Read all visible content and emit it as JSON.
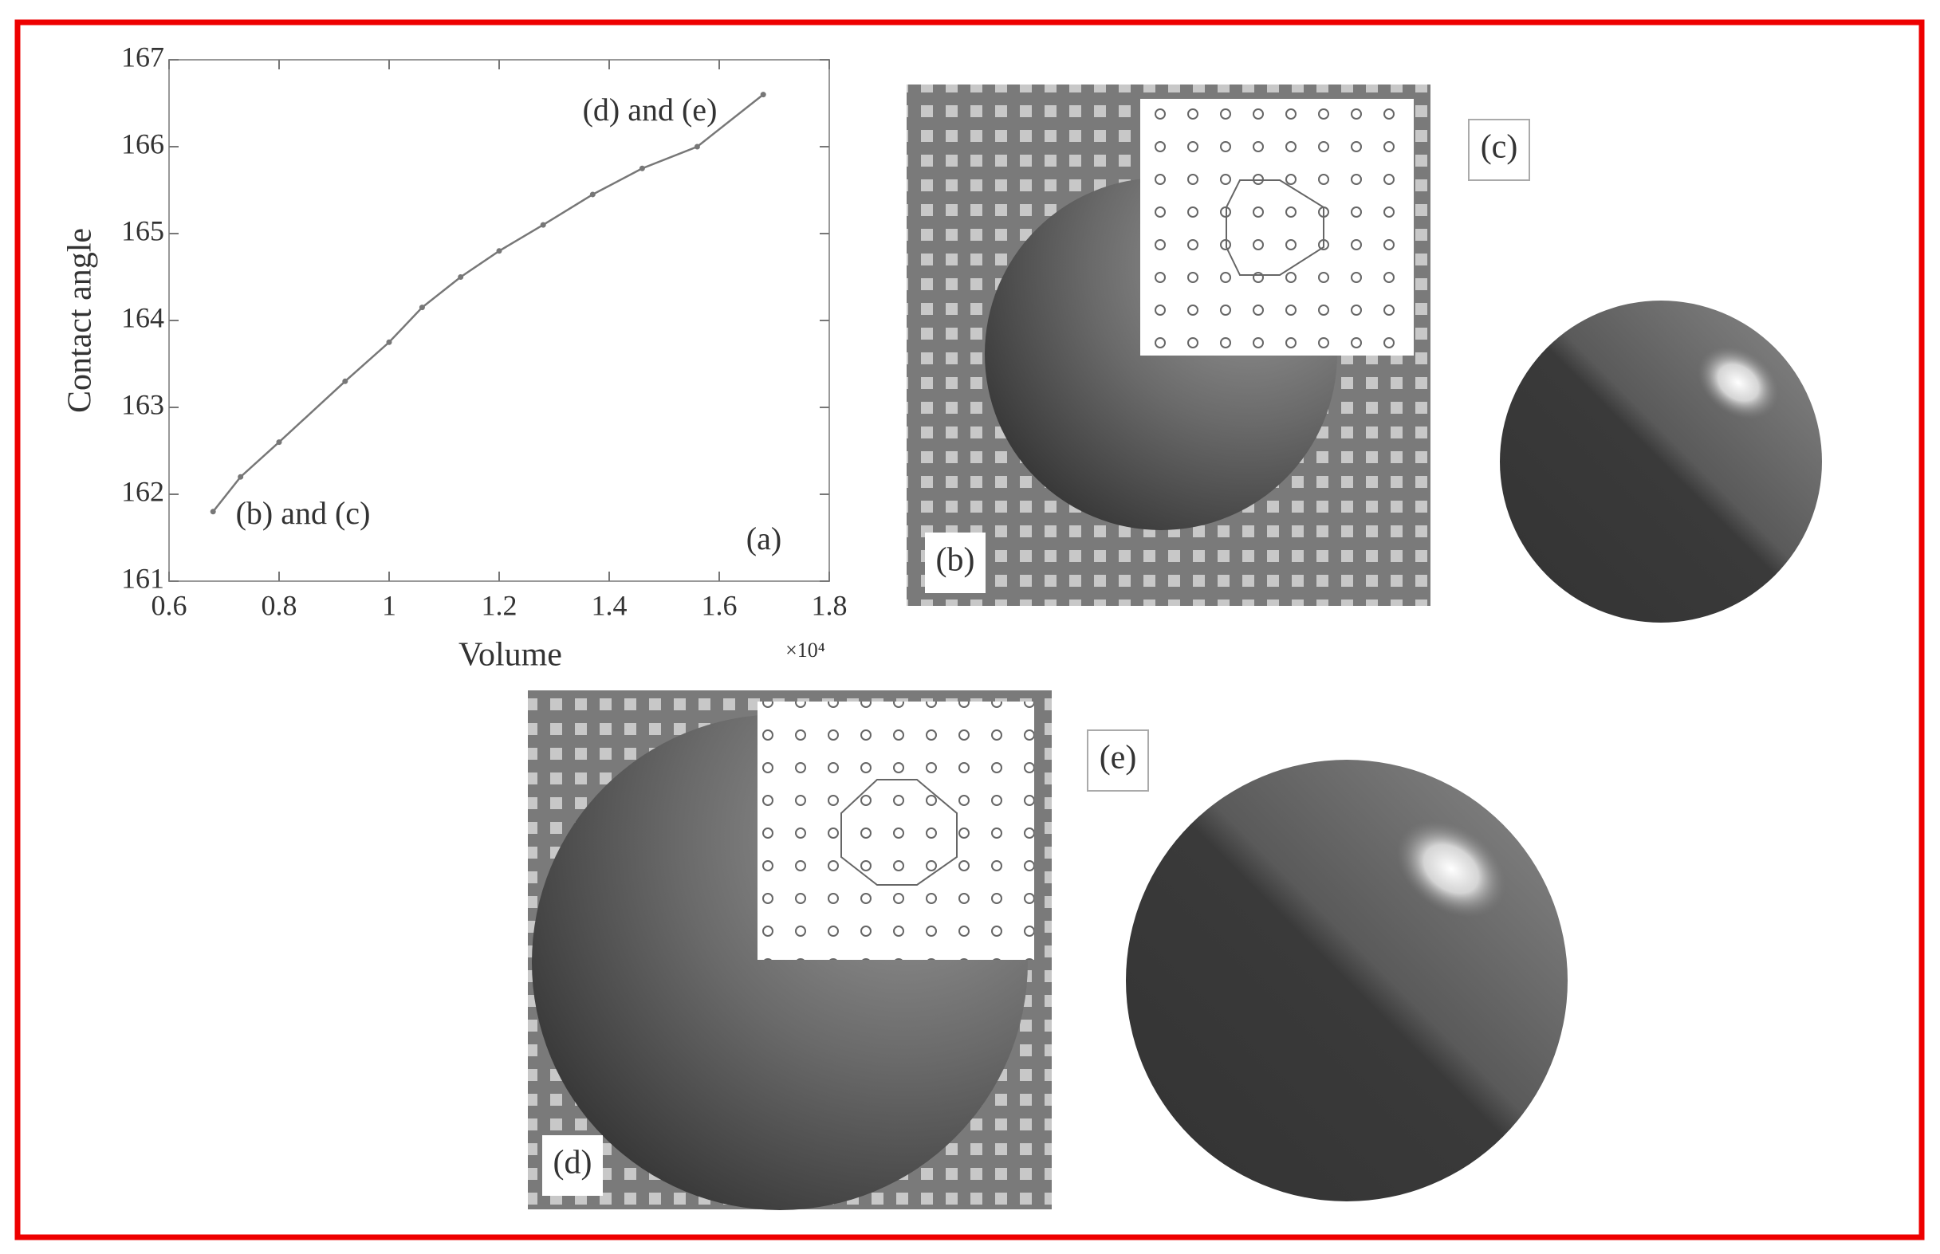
{
  "chart_data": {
    "type": "line",
    "xlabel": "Volume",
    "ylabel": "Contact angle",
    "x_multiplier": "×10⁴",
    "x": [
      0.68,
      0.73,
      0.8,
      0.92,
      1.0,
      1.06,
      1.13,
      1.2,
      1.28,
      1.37,
      1.46,
      1.56,
      1.68
    ],
    "values": [
      161.8,
      162.2,
      162.6,
      163.3,
      163.75,
      164.15,
      164.5,
      164.8,
      165.1,
      165.45,
      165.75,
      166.0,
      166.6
    ],
    "color": "#777777",
    "xlim": [
      0.6,
      1.8
    ],
    "xticks": [
      0.6,
      0.8,
      1,
      1.2,
      1.4,
      1.6,
      1.8
    ],
    "ylim": [
      161,
      167
    ],
    "yticks": [
      161,
      162,
      163,
      164,
      165,
      166,
      167
    ],
    "annotations": [
      "(d) and (e)",
      "(b) and (c)",
      "(a)"
    ]
  },
  "figure_labels": [
    "(b)",
    "(c)",
    "(d)",
    "(e)"
  ]
}
